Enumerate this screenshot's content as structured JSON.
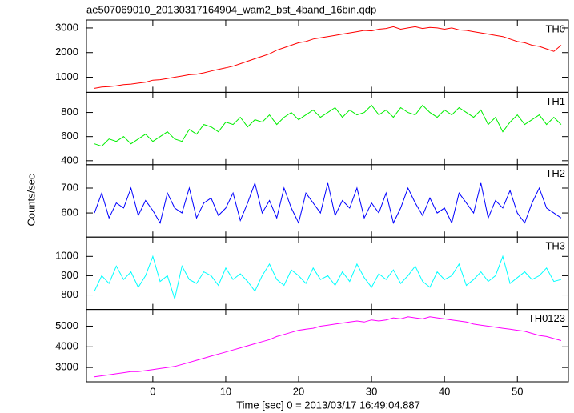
{
  "chart_data": {
    "type": "line",
    "title": "ae507069010_20130317164904_wam2_bst_4band_16bin.qdp",
    "xlabel": "Time [sec] 0 = 2013/03/17 16:49:04.887",
    "ylabel": "Counts/sec",
    "xlim": [
      -9.1,
      57
    ],
    "xticks": [
      0,
      10,
      20,
      30,
      40,
      50
    ],
    "x": [
      -8,
      -7,
      -6,
      -5,
      -4,
      -3,
      -2,
      -1,
      0,
      1,
      2,
      3,
      4,
      5,
      6,
      7,
      8,
      9,
      10,
      11,
      12,
      13,
      14,
      15,
      16,
      17,
      18,
      19,
      20,
      21,
      22,
      23,
      24,
      25,
      26,
      27,
      28,
      29,
      30,
      31,
      32,
      33,
      34,
      35,
      36,
      37,
      38,
      39,
      40,
      41,
      42,
      43,
      44,
      45,
      46,
      47,
      48,
      49,
      50,
      51,
      52,
      53,
      54,
      55,
      56
    ],
    "series": [
      {
        "name": "TH0",
        "color": "#ff0000",
        "ylim": [
          387,
          3323
        ],
        "yticks": [
          1000,
          2000,
          3000
        ],
        "values": [
          550,
          600,
          620,
          650,
          700,
          720,
          760,
          800,
          880,
          900,
          950,
          1000,
          1050,
          1100,
          1120,
          1180,
          1250,
          1320,
          1380,
          1450,
          1550,
          1650,
          1750,
          1850,
          1950,
          2100,
          2200,
          2300,
          2400,
          2450,
          2550,
          2600,
          2650,
          2700,
          2750,
          2800,
          2850,
          2900,
          2880,
          2950,
          2980,
          3050,
          2950,
          3000,
          3050,
          2980,
          3020,
          3000,
          2950,
          3000,
          2920,
          2900,
          2850,
          2800,
          2750,
          2700,
          2650,
          2550,
          2450,
          2400,
          2300,
          2250,
          2150,
          2050,
          2300
        ]
      },
      {
        "name": "TH1",
        "color": "#00ee00",
        "ylim": [
          367,
          967
        ],
        "yticks": [
          400,
          600,
          800
        ],
        "values": [
          540,
          520,
          580,
          560,
          600,
          540,
          580,
          620,
          560,
          600,
          640,
          580,
          560,
          660,
          620,
          700,
          680,
          640,
          720,
          700,
          760,
          680,
          740,
          720,
          780,
          700,
          760,
          800,
          740,
          780,
          820,
          760,
          800,
          840,
          760,
          820,
          780,
          800,
          860,
          780,
          820,
          760,
          840,
          800,
          780,
          860,
          800,
          760,
          820,
          780,
          840,
          800,
          760,
          820,
          700,
          760,
          640,
          720,
          780,
          700,
          740,
          780,
          700,
          760,
          700
        ]
      },
      {
        "name": "TH2",
        "color": "#0000ff",
        "ylim": [
          503,
          794
        ],
        "yticks": [
          600,
          700
        ],
        "values": [
          600,
          680,
          580,
          640,
          620,
          700,
          590,
          650,
          610,
          560,
          680,
          620,
          600,
          700,
          580,
          640,
          660,
          590,
          620,
          680,
          570,
          640,
          720,
          600,
          650,
          580,
          700,
          620,
          560,
          680,
          640,
          600,
          720,
          590,
          650,
          620,
          700,
          580,
          640,
          600,
          680,
          560,
          620,
          700,
          640,
          590,
          660,
          600,
          620,
          560,
          680,
          640,
          600,
          720,
          580,
          650,
          620,
          690,
          600,
          560,
          640,
          700,
          620,
          600,
          580
        ]
      },
      {
        "name": "TH3",
        "color": "#00ffff",
        "ylim": [
          725,
          1100
        ],
        "yticks": [
          800,
          900,
          1000
        ],
        "values": [
          820,
          900,
          860,
          950,
          880,
          920,
          840,
          900,
          1000,
          870,
          900,
          780,
          950,
          880,
          860,
          920,
          900,
          850,
          940,
          880,
          910,
          870,
          820,
          900,
          960,
          880,
          850,
          930,
          900,
          860,
          940,
          880,
          900,
          850,
          920,
          870,
          960,
          890,
          840,
          910,
          880,
          930,
          860,
          900,
          950,
          870,
          840,
          920,
          880,
          900,
          960,
          850,
          880,
          920,
          870,
          900,
          1000,
          860,
          890,
          920,
          880,
          900,
          940,
          870,
          880
        ]
      },
      {
        "name": "TH0123",
        "color": "#ff00ff",
        "ylim": [
          2308,
          5808
        ],
        "yticks": [
          3000,
          4000,
          5000
        ],
        "values": [
          2550,
          2600,
          2650,
          2700,
          2750,
          2800,
          2800,
          2850,
          2900,
          2950,
          3000,
          3050,
          3150,
          3250,
          3350,
          3450,
          3550,
          3650,
          3750,
          3850,
          3950,
          4050,
          4150,
          4250,
          4350,
          4500,
          4600,
          4700,
          4800,
          4850,
          4900,
          5000,
          5050,
          5100,
          5150,
          5200,
          5250,
          5200,
          5300,
          5250,
          5300,
          5400,
          5350,
          5450,
          5400,
          5350,
          5450,
          5400,
          5350,
          5300,
          5250,
          5200,
          5100,
          5050,
          5000,
          4950,
          4900,
          4850,
          4800,
          4750,
          4650,
          4550,
          4500,
          4400,
          4300
        ]
      }
    ]
  }
}
